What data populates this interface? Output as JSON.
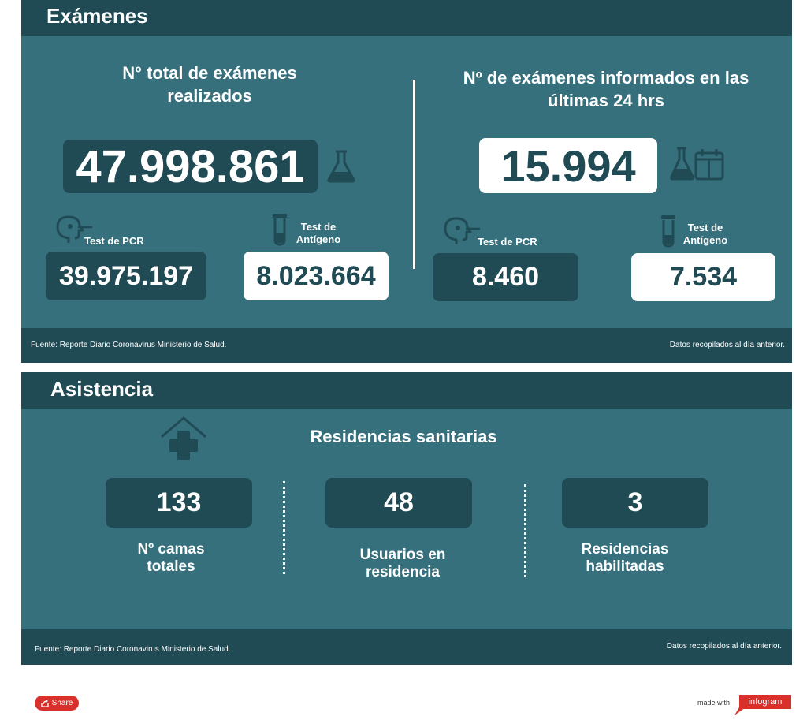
{
  "examenes": {
    "title": "Exámenes",
    "total": {
      "heading": "N° total de exámenes realizados",
      "value": "47.998.861",
      "pcr_label": "Test de PCR",
      "pcr_value": "39.975.197",
      "antigen_label": "Test de Antígeno",
      "antigen_value": "8.023.664"
    },
    "last24": {
      "heading": "Nº de exámenes informados en las últimas 24 hrs",
      "value": "15.994",
      "pcr_label": "Test de PCR",
      "pcr_value": "8.460",
      "antigen_label": "Test de Antígeno",
      "antigen_value": "7.534"
    },
    "footer_source": "Fuente: Reporte Diario Coronavirus Ministerio de Salud.",
    "footer_note": "Datos recopilados al día anterior."
  },
  "asistencia": {
    "title": "Asistencia",
    "heading": "Residencias sanitarias",
    "stats": [
      {
        "value": "133",
        "label": "Nº camas totales"
      },
      {
        "value": "48",
        "label": "Usuarios en residencia"
      },
      {
        "value": "3",
        "label": "Residencias habilitadas"
      }
    ],
    "footer_source": "Fuente: Reporte Diario Coronavirus Ministerio de Salud.",
    "footer_note": "Datos recopilados al día anterior."
  },
  "bottom_bar": {
    "share_label": "Share",
    "made_with": "made with",
    "brand": "infogram"
  },
  "colors": {
    "panel_bg": "#36707d",
    "panel_dark": "#204b55",
    "accent_red": "#d9302c"
  },
  "icons": [
    "flask-icon",
    "flask-calendar-icon",
    "nasal-swab-head-icon",
    "test-tube-icon",
    "house-medical-cross-icon",
    "share-icon"
  ]
}
